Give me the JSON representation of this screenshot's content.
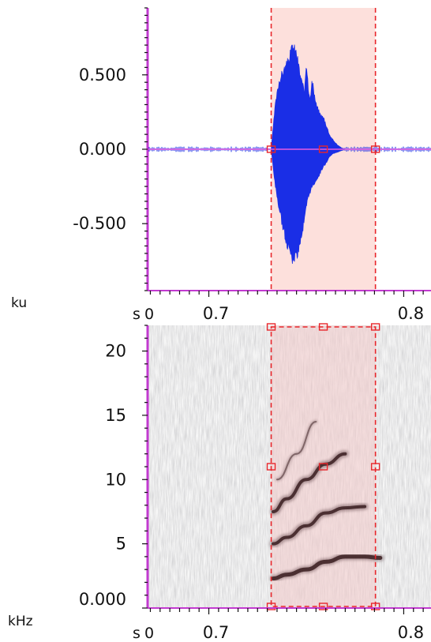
{
  "chart_data": [
    {
      "type": "line",
      "title": "",
      "ylabel": "ku",
      "xlabel": "s",
      "x_origin_label": "0",
      "ylim": [
        -0.95,
        0.95
      ],
      "xlim": [
        0.669,
        0.814
      ],
      "y_ticks": [
        "0.500",
        "0.000",
        "-0.500"
      ],
      "y_tick_values": [
        0.5,
        0.0,
        -0.5
      ],
      "x_ticks": [
        "0.7",
        "0.8"
      ],
      "x_tick_values": [
        0.7,
        0.8
      ],
      "selection": {
        "start": 0.732,
        "end": 0.7855
      },
      "envelope": {
        "x": [
          0.732,
          0.734,
          0.736,
          0.738,
          0.74,
          0.742,
          0.743,
          0.745,
          0.747,
          0.749,
          0.75,
          0.751,
          0.752,
          0.753,
          0.755,
          0.757,
          0.759,
          0.761,
          0.762,
          0.764,
          0.766,
          0.768,
          0.77
        ],
        "upper": [
          0.0,
          0.3,
          0.48,
          0.55,
          0.6,
          0.68,
          0.74,
          0.68,
          0.52,
          0.4,
          0.63,
          0.45,
          0.35,
          0.48,
          0.32,
          0.25,
          0.22,
          0.14,
          0.1,
          0.06,
          0.03,
          0.01,
          0.0
        ],
        "lower": [
          0.0,
          -0.25,
          -0.42,
          -0.55,
          -0.66,
          -0.74,
          -0.78,
          -0.76,
          -0.65,
          -0.52,
          -0.42,
          -0.35,
          -0.3,
          -0.27,
          -0.22,
          -0.17,
          -0.12,
          -0.08,
          -0.05,
          -0.03,
          -0.02,
          -0.01,
          0.0
        ]
      },
      "colors": {
        "waveform": "#1a2ee6",
        "baseline": "#e35be0",
        "selection_fill": "#fde0dc",
        "selection_line": "#e8262b",
        "axis": "#c23bd0"
      }
    },
    {
      "type": "heatmap",
      "title": "",
      "ylabel": "kHz",
      "xlabel": "s",
      "x_origin_label": "0",
      "ylim": [
        0,
        22
      ],
      "xlim": [
        0.669,
        0.814
      ],
      "y_ticks": [
        "20",
        "15",
        "10",
        "5",
        "0.000"
      ],
      "y_tick_values": [
        20,
        15,
        10,
        5,
        0
      ],
      "x_ticks": [
        "0.7",
        "0.8"
      ],
      "x_tick_values": [
        0.7,
        0.8
      ],
      "selection": {
        "start": 0.732,
        "end": 0.7855,
        "handle_khz": 11.0
      },
      "harmonics": [
        {
          "x": [
            0.733,
            0.74,
            0.75,
            0.76,
            0.77,
            0.78,
            0.788
          ],
          "khz": [
            2.3,
            2.6,
            3.0,
            3.6,
            4.0,
            4.0,
            3.9
          ]
        },
        {
          "x": [
            0.733,
            0.74,
            0.75,
            0.76,
            0.77,
            0.78
          ],
          "khz": [
            5.0,
            5.5,
            6.4,
            7.4,
            7.8,
            7.9
          ]
        },
        {
          "x": [
            0.733,
            0.74,
            0.75,
            0.76,
            0.77
          ],
          "khz": [
            7.5,
            8.5,
            10.0,
            11.2,
            12.0
          ]
        },
        {
          "x": [
            0.735,
            0.745,
            0.755
          ],
          "khz": [
            10.0,
            12.0,
            14.5
          ]
        }
      ],
      "colors": {
        "selection_fill": "#f2c8c8",
        "selection_line": "#e8262b",
        "axis": "#c23bd0",
        "harmonic": "#3a1d20"
      }
    }
  ]
}
